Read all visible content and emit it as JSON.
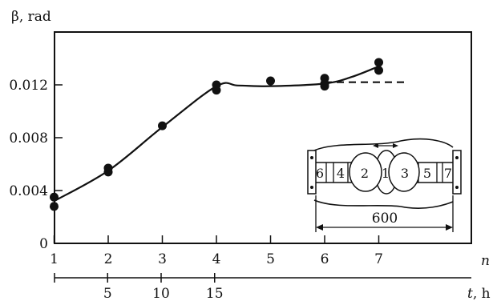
{
  "chart_data": {
    "type": "scatter",
    "y_axis": {
      "label": "β, rad",
      "range": [
        0,
        0.0165
      ],
      "ticks": [
        0,
        0.004,
        0.008,
        0.012
      ],
      "tick_labels": [
        "0",
        "0.004",
        "0.008",
        "0.012"
      ]
    },
    "x_axis_top": {
      "label": "n",
      "range": [
        0,
        8
      ],
      "ticks": [
        1,
        2,
        3,
        4,
        5,
        6,
        7
      ],
      "tick_labels": [
        "1",
        "2",
        "3",
        "4",
        "5",
        "6",
        "7"
      ]
    },
    "x_axis_bottom": {
      "label": "t, h",
      "ticks": [
        5,
        10,
        15
      ],
      "tick_labels": [
        "5",
        "10",
        "15"
      ]
    },
    "points": [
      {
        "x": 1,
        "y": 0.0035
      },
      {
        "x": 1,
        "y": 0.0028
      },
      {
        "x": 2,
        "y": 0.0057
      },
      {
        "x": 2,
        "y": 0.0054
      },
      {
        "x": 3,
        "y": 0.0089
      },
      {
        "x": 4,
        "y": 0.012
      },
      {
        "x": 4,
        "y": 0.0116
      },
      {
        "x": 5,
        "y": 0.0123
      },
      {
        "x": 6,
        "y": 0.0125
      },
      {
        "x": 6,
        "y": 0.0121
      },
      {
        "x": 6,
        "y": 0.0119
      },
      {
        "x": 7,
        "y": 0.0137
      },
      {
        "x": 7,
        "y": 0.0131
      }
    ],
    "fit_curve": [
      [
        1,
        0.0032
      ],
      [
        2,
        0.0055
      ],
      [
        3,
        0.0088
      ],
      [
        4,
        0.0119
      ],
      [
        4.4,
        0.01195
      ],
      [
        5,
        0.0119
      ],
      [
        6,
        0.0121
      ],
      [
        6.5,
        0.0126
      ],
      [
        7,
        0.0134
      ]
    ],
    "dashed_line": {
      "x": [
        6,
        7.55
      ],
      "y": 0.0122
    },
    "inset": {
      "labels": [
        "6",
        "4",
        "2",
        "1",
        "3",
        "5",
        "7"
      ],
      "dimension": "600"
    }
  }
}
